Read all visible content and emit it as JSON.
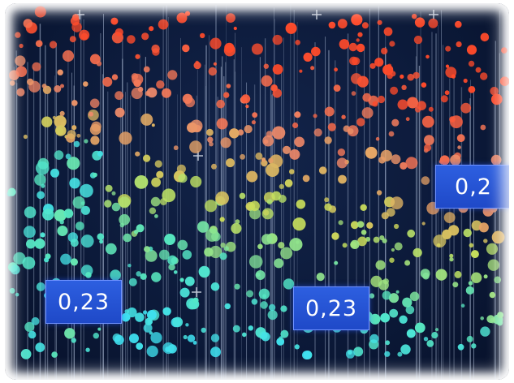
{
  "chart_data": {
    "type": "scatter",
    "title": "",
    "xlabel": "",
    "ylabel": "",
    "grid": false,
    "colormap": [
      "#3fe0f0",
      "#58e8c0",
      "#c9e05a",
      "#f08a6a",
      "#ff4a2a"
    ],
    "labels": [
      {
        "id": "label-left",
        "text": "0,23"
      },
      {
        "id": "label-center",
        "text": "0,23"
      },
      {
        "id": "label-right",
        "text": "0,2"
      }
    ]
  },
  "colors": {
    "background": "#0c1a3a",
    "label_fill": "#2552d6",
    "accent": "#ff4a2a"
  }
}
